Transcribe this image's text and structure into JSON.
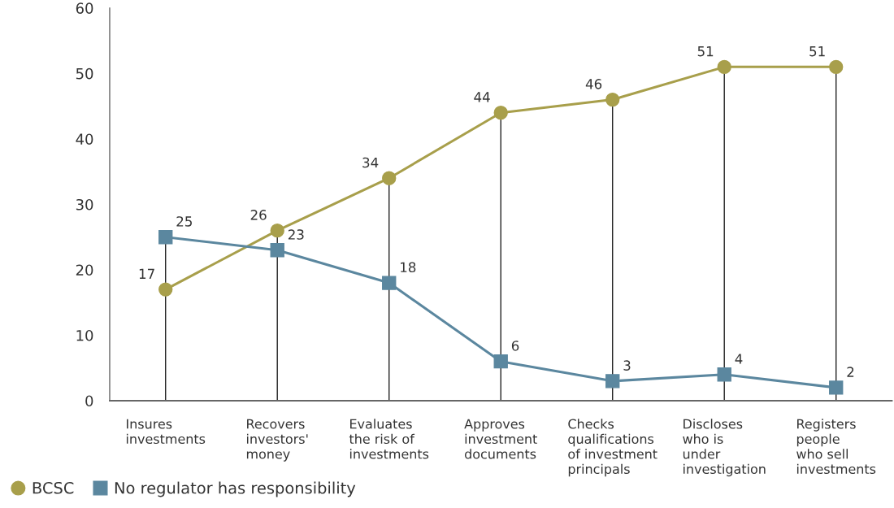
{
  "chart_data": {
    "type": "line",
    "categories": [
      "Insures\ninvestments",
      "Recovers\ninvestors'\nmoney",
      "Evaluates\nthe risk of\ninvestments",
      "Approves\ninvestment\ndocuments",
      "Checks\nqualifications\nof investment\nprincipals",
      "Discloses\nwho is\nunder\ninvestigation",
      "Registers\npeople\nwho sell\ninvestments"
    ],
    "series": [
      {
        "name": "BCSC",
        "color": "#a89f4b",
        "marker": "circle",
        "values": [
          17,
          26,
          34,
          44,
          46,
          51,
          51
        ]
      },
      {
        "name": "No regulator has responsibility",
        "color": "#5b879f",
        "marker": "square",
        "values": [
          25,
          23,
          18,
          6,
          3,
          4,
          2
        ]
      }
    ],
    "ylim": [
      0,
      60
    ],
    "yticks": [
      0,
      10,
      20,
      30,
      40,
      50,
      60
    ],
    "grid": "x",
    "data_labels": true,
    "legend": "bottom left",
    "line_style": "solid"
  }
}
